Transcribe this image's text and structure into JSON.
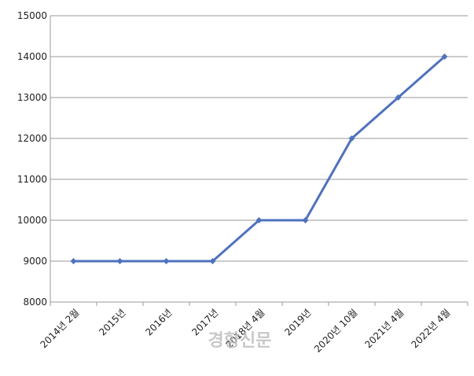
{
  "chart_data": {
    "type": "line",
    "categories": [
      "2014년 2월",
      "2015년",
      "2016년",
      "2017년",
      "2018년 4월",
      "2019년",
      "2020년 10월",
      "2021년 4월",
      "2022년 4월"
    ],
    "series": [
      {
        "color": "#4f72be",
        "values": [
          9000,
          9000,
          9000,
          9000,
          10000,
          10000,
          12000,
          13000,
          14000
        ]
      }
    ],
    "ylim": [
      8000,
      15000
    ],
    "yticks": [
      8000,
      9000,
      10000,
      11000,
      12000,
      13000,
      14000,
      15000
    ],
    "grid": true,
    "watermark": "경향신문"
  }
}
